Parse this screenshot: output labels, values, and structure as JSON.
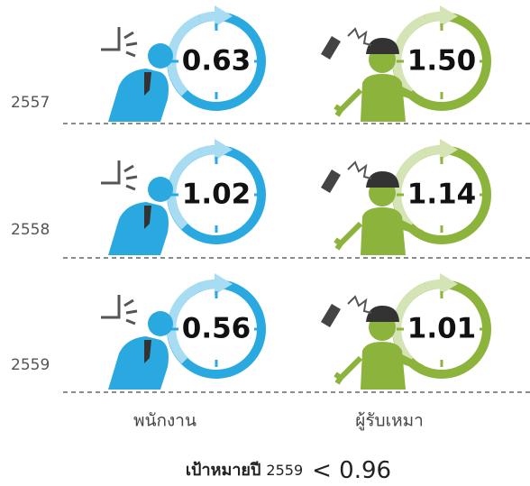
{
  "rows": [
    {
      "year": "2557",
      "employee": "0.63",
      "contractor": "1.50"
    },
    {
      "year": "2558",
      "employee": "1.02",
      "contractor": "1.14"
    },
    {
      "year": "2559",
      "employee": "0.56",
      "contractor": "1.01"
    }
  ],
  "columns": [
    "พนักงาน",
    "ผู้รับเหมา"
  ],
  "target": {
    "label": "เป้าหมายปี",
    "year": "2559",
    "value": "< 0.96"
  }
}
